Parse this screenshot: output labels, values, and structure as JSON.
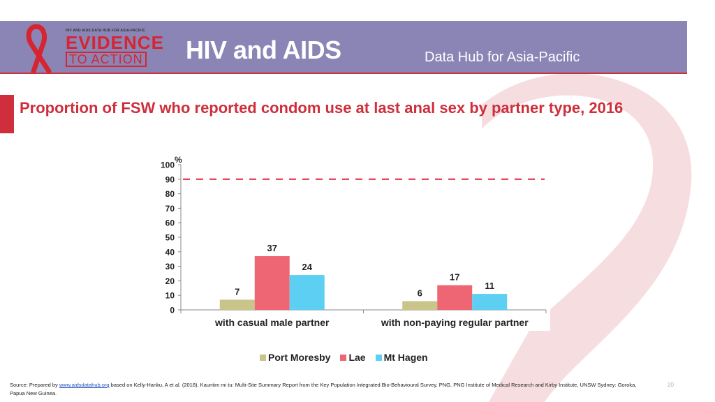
{
  "header": {
    "logo_small_text": "HIV AND AIDS DATA HUB FOR ASIA-PACIFIC",
    "logo_evidence": "EVIDENCE",
    "logo_action": "TO ACTION",
    "title": "HIV and AIDS",
    "subtitle": "Data Hub for Asia-Pacific"
  },
  "colors": {
    "header_band": "#8a85b5",
    "accent": "#cf2e3c",
    "port_moresby": "#c9c48a",
    "lae": "#ee6673",
    "mt_hagen": "#5ccff2",
    "target_line": "#e0223a"
  },
  "chart_data": {
    "type": "bar",
    "title": "Proportion of FSW who reported condom use at last anal sex by partner type, 2016",
    "ylabel": "%",
    "ylim": [
      0,
      100
    ],
    "yticks": [
      "0",
      "10",
      "20",
      "30",
      "40",
      "50",
      "60",
      "70",
      "80",
      "90",
      "100"
    ],
    "categories": [
      "with casual male partner",
      "with non-paying regular partner"
    ],
    "series": [
      {
        "name": "Port Moresby",
        "values": [
          7,
          6
        ],
        "labels": [
          "7",
          "6"
        ]
      },
      {
        "name": "Lae",
        "values": [
          37,
          17
        ],
        "labels": [
          "37",
          "17"
        ]
      },
      {
        "name": "Mt Hagen",
        "values": [
          24,
          11
        ],
        "labels": [
          "24",
          "11"
        ]
      }
    ],
    "target_line": 90,
    "legend_position": "bottom",
    "grid": false
  },
  "footer": {
    "source_prefix": "Source: Prepared by ",
    "source_link": "www.aidsdatahub.org",
    "source_rest": " based on Kelly-Hanku, A et al. (2018). Kauntim mi tu: Multi-Site Summary Report from the Key Population Integrated Bio-Behavioural Survey, PNG. PNG Institute of Medical Research and Kirby Institute, UNSW Sydney: Goroka, Papua New Guinea.",
    "page_number": "20"
  }
}
